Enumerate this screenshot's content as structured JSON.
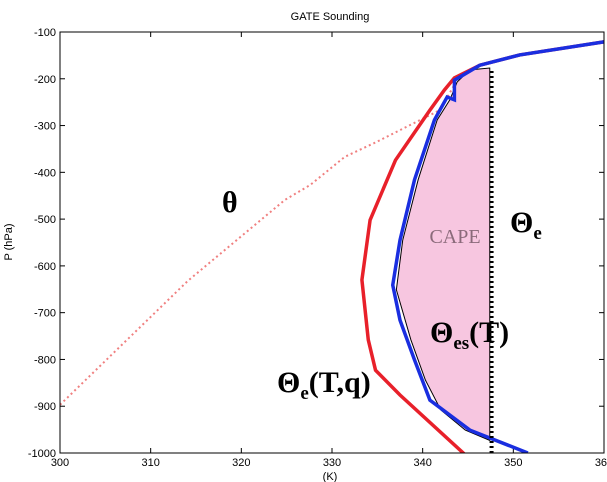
{
  "chart_data": {
    "type": "line",
    "title": "GATE Sounding",
    "xlabel": "(K)",
    "ylabel": "P (hPa)",
    "xlim": [
      300,
      360
    ],
    "ylim": [
      -1000,
      -100
    ],
    "xticks": [
      300,
      310,
      320,
      330,
      340,
      350,
      360
    ],
    "yticks": [
      -1000,
      -900,
      -800,
      -700,
      -600,
      -500,
      -400,
      -300,
      -200,
      -100
    ],
    "series": [
      {
        "name": "CAPE",
        "fill": "#f7c6e0",
        "color": "#000000",
        "dash": "solid",
        "width": 1,
        "x": [
          347.4,
          344.7,
          342,
          340.3,
          338.7,
          337.1,
          337.8,
          339.5,
          341.6,
          343,
          343.8,
          345.2,
          347.4
        ],
        "values": [
          -973,
          -951,
          -908,
          -844,
          -758,
          -651,
          -545,
          -416,
          -288,
          -245,
          -207,
          -181,
          -177
        ]
      },
      {
        "label": {
          "main": "θ"
        },
        "color": "#f08080",
        "dash": "dotted",
        "width": 2,
        "x": [
          300,
          314.1,
          324.8,
          327.6,
          331.4,
          334.7,
          341.9,
          343.5
        ],
        "values": [
          -897,
          -632,
          -459,
          -427,
          -367,
          -337,
          -267,
          -213
        ]
      },
      {
        "label": {
          "main": "Θ",
          "sub": "e",
          "tail": "(T,q)"
        },
        "color": "#e8202a",
        "dash": "solid",
        "width": 3.5,
        "x": [
          344.7,
          337.5,
          334.8,
          334,
          333.3,
          334.2,
          337,
          340.8,
          342.4,
          343.5,
          346.3,
          350.7,
          360
        ],
        "values": [
          -1004,
          -876,
          -823,
          -758,
          -630,
          -502,
          -374,
          -267,
          -224,
          -198,
          -171,
          -149,
          -121
        ]
      },
      {
        "label": {
          "main": "Θ",
          "sub": "es",
          "tail": "(T)"
        },
        "color": "#1a2ee0",
        "dash": "solid",
        "width": 3.5,
        "x": [
          351.6,
          345.2,
          340.8,
          339.1,
          337.5,
          336.7,
          337.5,
          339.1,
          341.3,
          342.7,
          343.5,
          343.5,
          346.3,
          350.7,
          360
        ],
        "values": [
          -1000,
          -951,
          -887,
          -801,
          -716,
          -641,
          -545,
          -416,
          -288,
          -239,
          -245,
          -203,
          -171,
          -149,
          -121
        ]
      },
      {
        "label": {
          "main": "Θ",
          "sub": "e"
        },
        "color": "#000000",
        "dash": "dotted",
        "width": 4,
        "x": [
          347.6,
          347.6
        ],
        "values": [
          -1000,
          -180
        ]
      }
    ]
  }
}
